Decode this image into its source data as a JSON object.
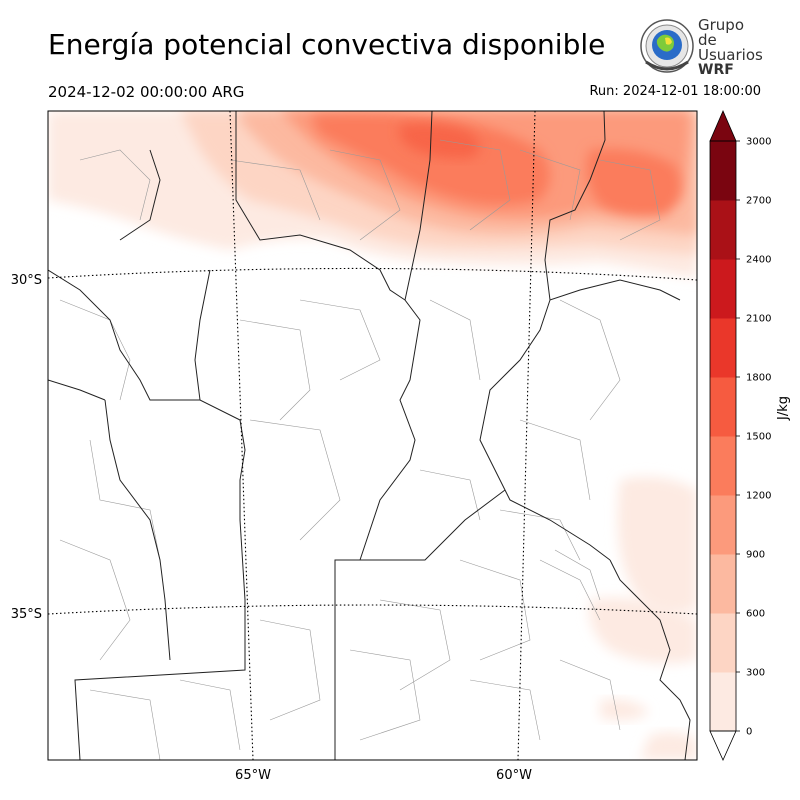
{
  "header": {
    "title": "Energía potencial convectiva disponible",
    "valid_time": "2024-12-02 00:00:00 ARG",
    "run_time": "Run: 2024-12-01 18:00:00"
  },
  "logo": {
    "line1": "Grupo de",
    "line2": "Usuarios",
    "line3": "WRF",
    "icon": "globe-seal-icon"
  },
  "map": {
    "lat_labels": [
      "30°S",
      "35°S"
    ],
    "lon_labels": [
      "65°W",
      "60°W"
    ]
  },
  "colorbar": {
    "label": "J/kg",
    "ticks": [
      "0",
      "300",
      "600",
      "900",
      "1200",
      "1500",
      "1800",
      "2100",
      "2400",
      "2700",
      "3000"
    ],
    "colors": [
      "#fdeae2",
      "#fdd5c4",
      "#fcb9a0",
      "#fc9a7c",
      "#fb7c5c",
      "#f65b40",
      "#ea372a",
      "#cc191d",
      "#aa1117",
      "#7a0510"
    ],
    "extend": "both"
  }
}
